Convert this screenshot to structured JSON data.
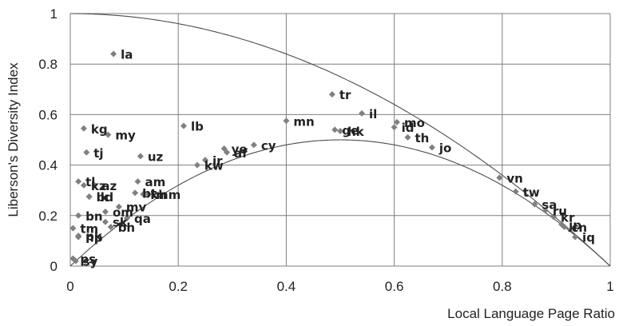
{
  "chart_data": {
    "type": "scatter",
    "xlabel": "Local Language Page Ratio",
    "ylabel": "Liberson's Diversity Index",
    "xlim": [
      0,
      1
    ],
    "ylim": [
      0,
      1
    ],
    "x_ticks": [
      "0",
      "0.2",
      "0.4",
      "0.6",
      "0.8",
      "1"
    ],
    "y_ticks": [
      "0",
      "0.2",
      "0.4",
      "0.6",
      "0.8",
      "1"
    ],
    "grid": "on",
    "points": [
      {
        "label": "la",
        "x": 0.08,
        "y": 0.84
      },
      {
        "label": "tr",
        "x": 0.485,
        "y": 0.68
      },
      {
        "label": "il",
        "x": 0.54,
        "y": 0.605
      },
      {
        "label": "mo",
        "x": 0.605,
        "y": 0.57
      },
      {
        "label": "id",
        "x": 0.6,
        "y": 0.55
      },
      {
        "label": "th",
        "x": 0.625,
        "y": 0.51
      },
      {
        "label": "jo",
        "x": 0.67,
        "y": 0.47
      },
      {
        "label": "mn",
        "x": 0.4,
        "y": 0.575
      },
      {
        "label": "hk",
        "x": 0.5,
        "y": 0.535
      },
      {
        "label": "ge",
        "x": 0.49,
        "y": 0.54
      },
      {
        "label": "kg",
        "x": 0.025,
        "y": 0.545
      },
      {
        "label": "my",
        "x": 0.07,
        "y": 0.52
      },
      {
        "label": "lb",
        "x": 0.21,
        "y": 0.555
      },
      {
        "label": "tj",
        "x": 0.03,
        "y": 0.45
      },
      {
        "label": "uz",
        "x": 0.13,
        "y": 0.435
      },
      {
        "label": "cy",
        "x": 0.34,
        "y": 0.48
      },
      {
        "label": "ye",
        "x": 0.285,
        "y": 0.465
      },
      {
        "label": "af",
        "x": 0.29,
        "y": 0.45
      },
      {
        "label": "ir",
        "x": 0.25,
        "y": 0.42
      },
      {
        "label": "kw",
        "x": 0.235,
        "y": 0.4
      },
      {
        "label": "tl",
        "x": 0.015,
        "y": 0.335
      },
      {
        "label": "kz",
        "x": 0.025,
        "y": 0.32
      },
      {
        "label": "az",
        "x": 0.045,
        "y": 0.32
      },
      {
        "label": "am",
        "x": 0.125,
        "y": 0.335
      },
      {
        "label": "bt",
        "x": 0.12,
        "y": 0.29
      },
      {
        "label": "kh",
        "x": 0.135,
        "y": 0.285
      },
      {
        "label": "mm",
        "x": 0.145,
        "y": 0.285
      },
      {
        "label": "bd",
        "x": 0.035,
        "y": 0.275
      },
      {
        "label": "lk",
        "x": 0.035,
        "y": 0.275
      },
      {
        "label": "mv",
        "x": 0.09,
        "y": 0.235
      },
      {
        "label": "om",
        "x": 0.065,
        "y": 0.215
      },
      {
        "label": "bn",
        "x": 0.015,
        "y": 0.2
      },
      {
        "label": "qa",
        "x": 0.105,
        "y": 0.19
      },
      {
        "label": "sk",
        "x": 0.065,
        "y": 0.175
      },
      {
        "label": "bh",
        "x": 0.075,
        "y": 0.155
      },
      {
        "label": "tm",
        "x": 0.005,
        "y": 0.15
      },
      {
        "label": "pk",
        "x": 0.015,
        "y": 0.12
      },
      {
        "label": "np",
        "x": 0.015,
        "y": 0.115
      },
      {
        "label": "ps",
        "x": 0.005,
        "y": 0.03
      },
      {
        "label": "sy",
        "x": 0.01,
        "y": 0.02
      },
      {
        "label": "vn",
        "x": 0.795,
        "y": 0.35
      },
      {
        "label": "tw",
        "x": 0.825,
        "y": 0.295
      },
      {
        "label": "sa",
        "x": 0.86,
        "y": 0.245
      },
      {
        "label": "ru",
        "x": 0.88,
        "y": 0.22
      },
      {
        "label": "kr",
        "x": 0.895,
        "y": 0.195
      },
      {
        "label": "jp",
        "x": 0.91,
        "y": 0.165
      },
      {
        "label": "cn",
        "x": 0.915,
        "y": 0.155
      },
      {
        "label": "iq",
        "x": 0.935,
        "y": 0.115
      }
    ]
  }
}
